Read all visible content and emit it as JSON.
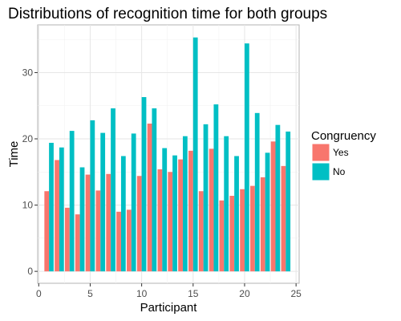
{
  "chart_data": {
    "type": "bar",
    "title": "Distributions of recognition time for both groups",
    "xlabel": "Participant",
    "ylabel": "Time",
    "xlim": [
      -0.1,
      25.3
    ],
    "ylim": [
      -1.8,
      37.2
    ],
    "xticks": [
      0,
      5,
      10,
      15,
      20,
      25
    ],
    "yticks": [
      0,
      10,
      20,
      30
    ],
    "grid": true,
    "legend": {
      "title": "Congruency",
      "position": "right"
    },
    "x": [
      1,
      2,
      3,
      4,
      5,
      6,
      7,
      8,
      9,
      10,
      11,
      12,
      13,
      14,
      15,
      16,
      17,
      18,
      19,
      20,
      21,
      22,
      23,
      24
    ],
    "series": [
      {
        "name": "Yes",
        "color": "#F8766D",
        "values": [
          12.1,
          16.8,
          9.6,
          8.6,
          14.6,
          12.2,
          14.7,
          9.0,
          9.3,
          14.4,
          22.3,
          15.4,
          15.0,
          16.9,
          18.2,
          12.1,
          18.5,
          10.7,
          11.4,
          12.4,
          12.9,
          14.2,
          19.6,
          15.9
        ]
      },
      {
        "name": "No",
        "color": "#00BFC4",
        "values": [
          19.4,
          18.7,
          21.2,
          15.7,
          22.8,
          20.9,
          24.6,
          17.4,
          20.8,
          26.3,
          24.6,
          18.6,
          17.5,
          20.4,
          35.3,
          22.2,
          25.2,
          20.4,
          17.4,
          34.4,
          23.9,
          17.9,
          22.1,
          21.1
        ]
      }
    ]
  }
}
